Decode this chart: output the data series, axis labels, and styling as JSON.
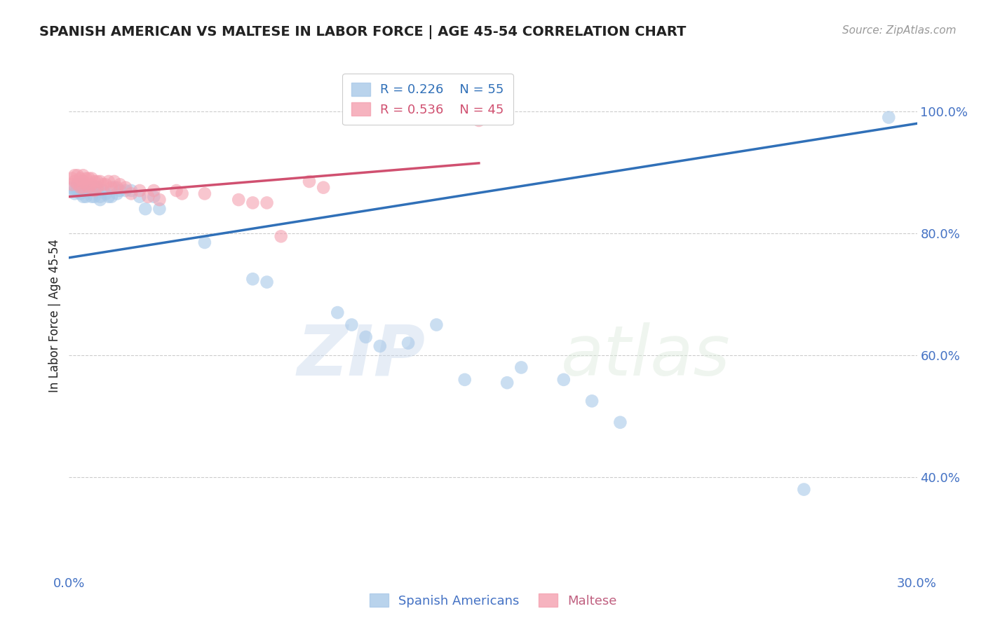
{
  "title": "SPANISH AMERICAN VS MALTESE IN LABOR FORCE | AGE 45-54 CORRELATION CHART",
  "source": "Source: ZipAtlas.com",
  "ylabel": "In Labor Force | Age 45-54",
  "xlim": [
    0.0,
    0.3
  ],
  "ylim": [
    0.25,
    1.08
  ],
  "yticks": [
    0.4,
    0.6,
    0.8,
    1.0
  ],
  "ytick_labels": [
    "40.0%",
    "60.0%",
    "80.0%",
    "100.0%"
  ],
  "xticks": [
    0.0,
    0.05,
    0.1,
    0.15,
    0.2,
    0.25,
    0.3
  ],
  "xtick_labels": [
    "0.0%",
    "",
    "",
    "",
    "",
    "",
    "30.0%"
  ],
  "legend_R_blue": "R = 0.226",
  "legend_N_blue": "N = 55",
  "legend_R_pink": "R = 0.536",
  "legend_N_pink": "N = 45",
  "blue_color": "#a8c8e8",
  "pink_color": "#f4a0b0",
  "line_blue": "#3070b8",
  "line_pink": "#d05070",
  "watermark_zip": "ZIP",
  "watermark_atlas": "atlas",
  "background_color": "#ffffff",
  "grid_color": "#cccccc",
  "title_color": "#222222",
  "tick_label_color": "#4472c4",
  "blue_scatter_x": [
    0.001,
    0.002,
    0.002,
    0.003,
    0.003,
    0.003,
    0.004,
    0.004,
    0.004,
    0.005,
    0.005,
    0.005,
    0.006,
    0.006,
    0.006,
    0.007,
    0.007,
    0.008,
    0.008,
    0.009,
    0.009,
    0.01,
    0.01,
    0.011,
    0.011,
    0.012,
    0.013,
    0.014,
    0.015,
    0.016,
    0.017,
    0.018,
    0.02,
    0.022,
    0.025,
    0.027,
    0.03,
    0.032,
    0.048,
    0.065,
    0.07,
    0.095,
    0.1,
    0.105,
    0.11,
    0.12,
    0.13,
    0.14,
    0.155,
    0.16,
    0.175,
    0.185,
    0.195,
    0.26,
    0.29
  ],
  "blue_scatter_y": [
    0.875,
    0.87,
    0.865,
    0.88,
    0.875,
    0.87,
    0.88,
    0.875,
    0.865,
    0.88,
    0.87,
    0.86,
    0.875,
    0.87,
    0.86,
    0.875,
    0.87,
    0.875,
    0.86,
    0.875,
    0.86,
    0.875,
    0.87,
    0.86,
    0.855,
    0.87,
    0.865,
    0.86,
    0.86,
    0.875,
    0.865,
    0.87,
    0.87,
    0.87,
    0.86,
    0.84,
    0.86,
    0.84,
    0.785,
    0.725,
    0.72,
    0.67,
    0.65,
    0.63,
    0.615,
    0.62,
    0.65,
    0.56,
    0.555,
    0.58,
    0.56,
    0.525,
    0.49,
    0.38,
    0.99
  ],
  "pink_scatter_x": [
    0.001,
    0.001,
    0.002,
    0.002,
    0.003,
    0.003,
    0.004,
    0.004,
    0.005,
    0.005,
    0.005,
    0.006,
    0.006,
    0.007,
    0.007,
    0.008,
    0.008,
    0.009,
    0.009,
    0.01,
    0.01,
    0.011,
    0.012,
    0.013,
    0.014,
    0.015,
    0.016,
    0.017,
    0.018,
    0.02,
    0.022,
    0.025,
    0.028,
    0.03,
    0.032,
    0.038,
    0.04,
    0.048,
    0.06,
    0.065,
    0.07,
    0.075,
    0.085,
    0.09,
    0.145
  ],
  "pink_scatter_y": [
    0.89,
    0.88,
    0.895,
    0.885,
    0.895,
    0.88,
    0.89,
    0.875,
    0.895,
    0.885,
    0.875,
    0.89,
    0.88,
    0.89,
    0.875,
    0.89,
    0.88,
    0.885,
    0.87,
    0.885,
    0.875,
    0.885,
    0.88,
    0.88,
    0.885,
    0.875,
    0.885,
    0.875,
    0.88,
    0.875,
    0.865,
    0.87,
    0.86,
    0.87,
    0.855,
    0.87,
    0.865,
    0.865,
    0.855,
    0.85,
    0.85,
    0.795,
    0.885,
    0.875,
    0.985
  ],
  "blue_line_x": [
    0.0,
    0.3
  ],
  "blue_line_y": [
    0.76,
    0.98
  ],
  "pink_line_x": [
    0.0,
    0.145
  ],
  "pink_line_y": [
    0.86,
    0.915
  ],
  "source_color": "#999999"
}
